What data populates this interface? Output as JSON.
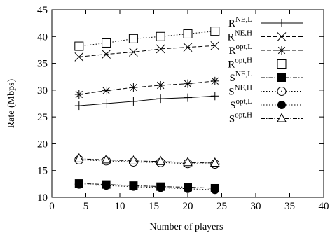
{
  "chart_data": {
    "type": "line",
    "title": "",
    "xlabel": "Number of players",
    "ylabel": "Rate (Mbps)",
    "xlim": [
      0,
      40
    ],
    "ylim": [
      10,
      45
    ],
    "x_ticks": [
      5,
      10,
      15,
      20,
      25,
      30,
      35,
      40
    ],
    "y_ticks": [
      10,
      15,
      20,
      25,
      30,
      35,
      40,
      45
    ],
    "grid": false,
    "legend_position": "top-right",
    "series": [
      {
        "name": "R",
        "subscript": "NE,L",
        "marker": "plus",
        "dash": "solid",
        "x": [
          4,
          8,
          12,
          16,
          20,
          24
        ],
        "y": [
          27.1,
          27.5,
          27.9,
          28.4,
          28.6,
          28.9
        ]
      },
      {
        "name": "R",
        "subscript": "NE,H",
        "marker": "cross",
        "dash": "dashed",
        "x": [
          4,
          8,
          12,
          16,
          20,
          24
        ],
        "y": [
          36.2,
          36.7,
          37.1,
          37.7,
          38.0,
          38.3
        ]
      },
      {
        "name": "R",
        "subscript": "opt,L",
        "marker": "asterisk",
        "dash": "dashed",
        "x": [
          4,
          8,
          12,
          16,
          20,
          24
        ],
        "y": [
          29.2,
          29.9,
          30.5,
          30.9,
          31.2,
          31.7
        ]
      },
      {
        "name": "R",
        "subscript": "opt,H",
        "marker": "open-square",
        "dash": "dotted",
        "x": [
          4,
          8,
          12,
          16,
          20,
          24
        ],
        "y": [
          38.2,
          38.8,
          39.6,
          40.0,
          40.5,
          41.0
        ]
      },
      {
        "name": "S",
        "subscript": "NE,L",
        "marker": "filled-square",
        "dash": "dashdot",
        "x": [
          4,
          8,
          12,
          16,
          20,
          24
        ],
        "y": [
          12.6,
          12.4,
          12.2,
          12.0,
          11.9,
          11.7
        ]
      },
      {
        "name": "S",
        "subscript": "NE,H",
        "marker": "open-circle",
        "dash": "dotted",
        "x": [
          4,
          8,
          12,
          16,
          20,
          24
        ],
        "y": [
          17.0,
          16.8,
          16.6,
          16.5,
          16.3,
          16.2
        ]
      },
      {
        "name": "S",
        "subscript": "opt,L",
        "marker": "filled-circle",
        "dash": "dotted",
        "x": [
          4,
          8,
          12,
          16,
          20,
          24
        ],
        "y": [
          12.4,
          12.2,
          12.0,
          11.8,
          11.6,
          11.4
        ]
      },
      {
        "name": "S",
        "subscript": "opt,H",
        "marker": "open-triangle",
        "dash": "dashdot",
        "x": [
          4,
          8,
          12,
          16,
          20,
          24
        ],
        "y": [
          17.2,
          17.0,
          16.8,
          16.7,
          16.5,
          16.4
        ]
      }
    ]
  }
}
